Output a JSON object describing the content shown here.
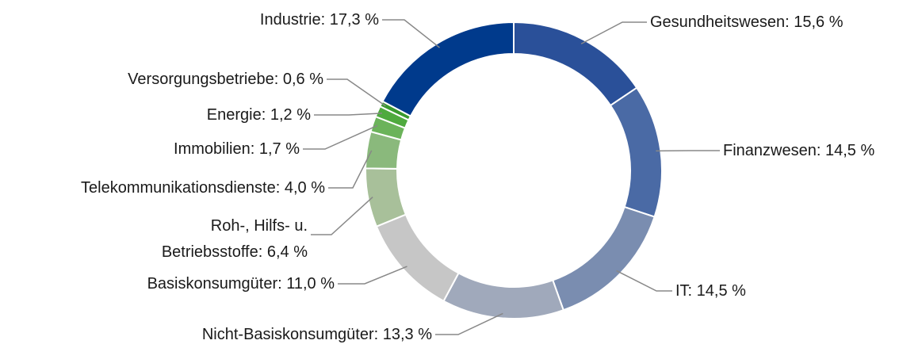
{
  "chart_data": {
    "type": "donut",
    "categories": [
      "Gesundheitswesen: 15,6 %",
      "Finanzwesen: 14,5 %",
      "IT: 14,5 %",
      "Nicht-Basiskonsumgüter: 13,3 %",
      "Basiskonsumgüter: 11,0 %",
      "Roh-, Hilfs- u. Betriebsstoffe: 6,4 %",
      "Telekommunikationsdienste: 4,0 %",
      "Immobilien: 1,7 %",
      "Energie: 1,2 %",
      "Versorgungsbetriebe: 0,6 %",
      "Industrie: 17,3 %"
    ],
    "values": [
      15.6,
      14.5,
      14.5,
      13.3,
      11.0,
      6.4,
      4.0,
      1.7,
      1.2,
      0.6,
      17.3
    ],
    "colors": [
      "#2a5099",
      "#4a6aa5",
      "#7a8db0",
      "#a0a9bb",
      "#c6c6c6",
      "#a8c09a",
      "#8ab97c",
      "#6bb35a",
      "#4faa3e",
      "#3a9a2e",
      "#003a8c"
    ]
  }
}
